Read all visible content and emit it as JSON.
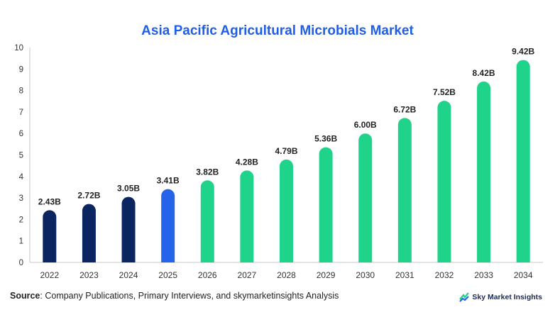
{
  "chart_data": {
    "type": "bar",
    "title": "Asia Pacific Agricultural Microbials Market",
    "categories": [
      "2022",
      "2023",
      "2024",
      "2025",
      "2026",
      "2027",
      "2028",
      "2029",
      "2030",
      "2031",
      "2032",
      "2033",
      "2034"
    ],
    "values": [
      2.43,
      2.72,
      3.05,
      3.41,
      3.82,
      4.28,
      4.79,
      5.36,
      6.0,
      6.72,
      7.52,
      8.42,
      9.42
    ],
    "data_labels": [
      "2.43B",
      "2.72B",
      "3.05B",
      "3.41B",
      "3.82B",
      "4.28B",
      "4.79B",
      "5.36B",
      "6.00B",
      "6.72B",
      "7.52B",
      "8.42B",
      "9.42B"
    ],
    "ylim": [
      0,
      10
    ],
    "yticks": [
      0,
      1,
      2,
      3,
      4,
      5,
      6,
      7,
      8,
      9,
      10
    ],
    "xlabel": "",
    "ylabel": "",
    "grid": false,
    "colors": {
      "historical": "#0b2560",
      "base_year": "#2563eb",
      "forecast": "#1fd38a"
    },
    "bar_color_groups": [
      "historical",
      "historical",
      "historical",
      "base_year",
      "forecast",
      "forecast",
      "forecast",
      "forecast",
      "forecast",
      "forecast",
      "forecast",
      "forecast",
      "forecast"
    ]
  },
  "footer": {
    "source_label": "Source",
    "source_text": ": Company Publications, Primary Interviews, and skymarketinsights Analysis"
  },
  "brand": {
    "name": "Sky Market Insights",
    "icon": "sky-market-insights-logo-icon"
  }
}
